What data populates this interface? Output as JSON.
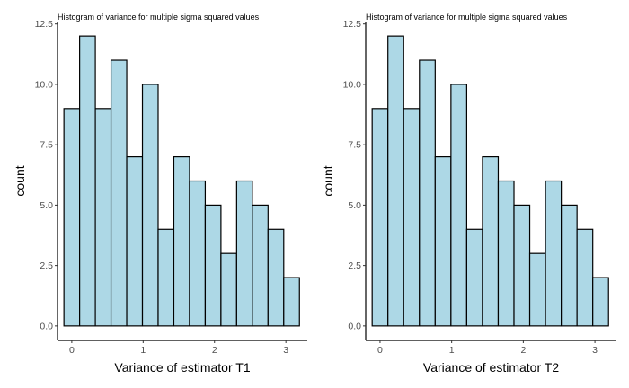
{
  "chart_data": [
    {
      "type": "bar",
      "title": "Histogram of variance for multiple sigma squared values",
      "xlabel": "Variance of estimator T1",
      "ylabel": "count",
      "bin_centers": [
        0.0,
        0.22,
        0.44,
        0.66,
        0.88,
        1.1,
        1.32,
        1.54,
        1.76,
        1.98,
        2.2,
        2.42,
        2.64,
        2.86,
        3.08
      ],
      "bin_width": 0.22,
      "values": [
        9,
        12,
        9,
        11,
        7,
        10,
        4,
        7,
        6,
        5,
        3,
        6,
        5,
        4,
        2
      ],
      "x_ticks": [
        0,
        1,
        2,
        3
      ],
      "x_tick_labels": [
        "0",
        "1",
        "2",
        "3"
      ],
      "y_ticks": [
        0,
        2.5,
        5,
        7.5,
        10,
        12.5
      ],
      "y_tick_labels": [
        "0.0",
        "2.5",
        "5.0",
        "7.5",
        "10.0",
        "12.5"
      ],
      "xlim": [
        -0.2,
        3.3
      ],
      "ylim": [
        -0.6,
        12.6
      ],
      "bar_fill": "#add8e6",
      "bar_stroke": "#000000",
      "grid": false
    },
    {
      "type": "bar",
      "title": "Histogram of variance for multiple sigma squared values",
      "xlabel": "Variance of estimator T2",
      "ylabel": "count",
      "bin_centers": [
        0.0,
        0.22,
        0.44,
        0.66,
        0.88,
        1.1,
        1.32,
        1.54,
        1.76,
        1.98,
        2.2,
        2.42,
        2.64,
        2.86,
        3.08
      ],
      "bin_width": 0.22,
      "values": [
        9,
        12,
        9,
        11,
        7,
        10,
        4,
        7,
        6,
        5,
        3,
        6,
        5,
        4,
        2
      ],
      "x_ticks": [
        0,
        1,
        2,
        3
      ],
      "x_tick_labels": [
        "0",
        "1",
        "2",
        "3"
      ],
      "y_ticks": [
        0,
        2.5,
        5,
        7.5,
        10,
        12.5
      ],
      "y_tick_labels": [
        "0.0",
        "2.5",
        "5.0",
        "7.5",
        "10.0",
        "12.5"
      ],
      "xlim": [
        -0.2,
        3.3
      ],
      "ylim": [
        -0.6,
        12.6
      ],
      "bar_fill": "#add8e6",
      "bar_stroke": "#000000",
      "grid": false
    }
  ]
}
